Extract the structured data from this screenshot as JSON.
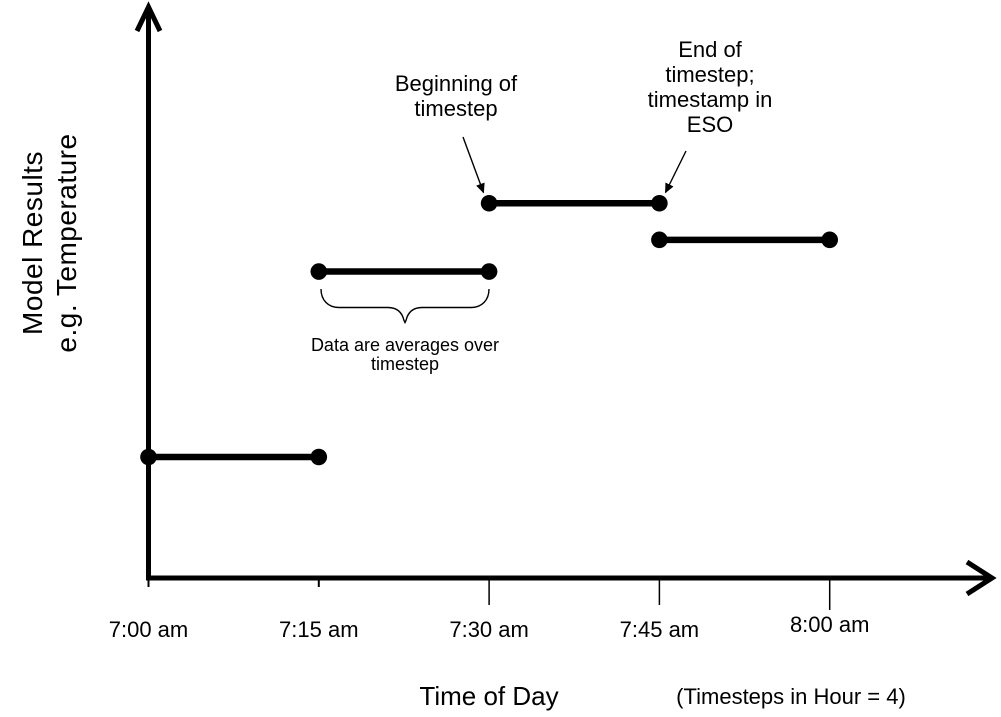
{
  "figure": {
    "background": "#ffffff",
    "ink_color": "#000000"
  },
  "chart_data": {
    "type": "line",
    "subtype": "piecewise-constant step segments with endpoint dots",
    "title": "",
    "xlabel": "Time of Day",
    "xlabel_note": "(Timesteps in Hour = 4)",
    "ylabel": "Model Results\ne.g. Temperature",
    "x_ticks": [
      "7:00 am",
      "7:15 am",
      "7:30 am",
      "7:45 am",
      "8:00 am"
    ],
    "y_ticks": [],
    "value_units": "unitless (schematic; no y-axis scale shown)",
    "grid": false,
    "legend": "none",
    "segments": [
      {
        "start": "7:00 am",
        "end": "7:15 am",
        "value": 1.0
      },
      {
        "start": "7:15 am",
        "end": "7:30 am",
        "value": 2.52
      },
      {
        "start": "7:30 am",
        "end": "7:45 am",
        "value": 3.08
      },
      {
        "start": "7:45 am",
        "end": "8:00 am",
        "value": 2.78
      }
    ],
    "annotations": {
      "beginning": "Beginning of\ntimestep",
      "end": "End of\ntimestep;\ntimestamp in\nESO",
      "brace": "Data are averages over\ntimestep"
    }
  }
}
